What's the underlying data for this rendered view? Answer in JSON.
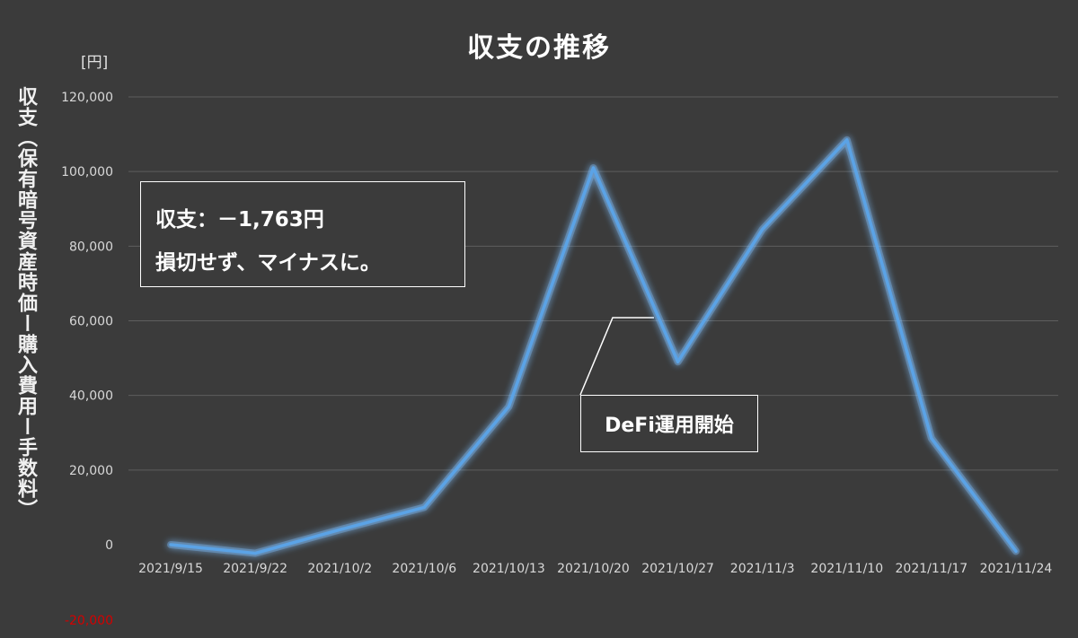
{
  "page": {
    "title": "収支の推移",
    "unit_label": "[円]",
    "y_axis_label": "収支（保有暗号資産時価ー購入費用ー手数料）"
  },
  "note": {
    "line1": "収支：－1,763円",
    "line2": "損切せず、マイナスに。"
  },
  "callout": {
    "text": "DeFi運用開始"
  },
  "style": {
    "background": "#3b3b3b",
    "line_color": "#5ba3e6",
    "glow_color": "#7fc0ff",
    "grid_color": "#5e5e5e",
    "negative_tick_color": "#d40000"
  },
  "chart_data": {
    "type": "line",
    "title": "収支の推移",
    "xlabel": "",
    "ylabel": "収支（保有暗号資産時価ー購入費用ー手数料）",
    "unit": "[円]",
    "categories": [
      "2021/9/15",
      "2021/9/22",
      "2021/10/2",
      "2021/10/6",
      "2021/10/13",
      "2021/10/20",
      "2021/10/27",
      "2021/11/3",
      "2021/11/10",
      "2021/11/17",
      "2021/11/24"
    ],
    "series": [
      {
        "values": [
          0,
          -2300,
          4000,
          10000,
          37000,
          101000,
          49000,
          84500,
          108500,
          28500,
          -1763
        ]
      }
    ],
    "ylim": [
      -20000,
      120000
    ],
    "yticks": [
      -20000,
      0,
      20000,
      40000,
      60000,
      80000,
      100000,
      120000
    ],
    "ytick_labels": [
      "-20,000",
      "0",
      "20,000",
      "40,000",
      "60,000",
      "80,000",
      "100,000",
      "120,000"
    ],
    "grid": true,
    "legend": "none"
  }
}
